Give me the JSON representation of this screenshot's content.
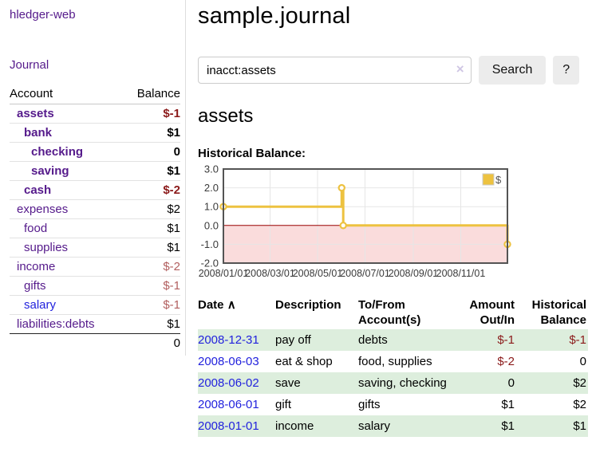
{
  "app": {
    "title": "hledger-web"
  },
  "sidebar": {
    "journal_label": "Journal",
    "headers": {
      "account": "Account",
      "balance": "Balance"
    },
    "rows": [
      {
        "account": "assets",
        "balance": "$-1",
        "depth": 1,
        "bold": true,
        "neg": "strong"
      },
      {
        "account": "bank",
        "balance": "$1",
        "depth": 2,
        "bold": true,
        "neg": null
      },
      {
        "account": "checking",
        "balance": "0",
        "depth": 3,
        "bold": true,
        "neg": null
      },
      {
        "account": "saving",
        "balance": "$1",
        "depth": 3,
        "bold": true,
        "neg": null
      },
      {
        "account": "cash",
        "balance": "$-2",
        "depth": 2,
        "bold": true,
        "neg": "strong"
      },
      {
        "account": "expenses",
        "balance": "$2",
        "depth": 1,
        "bold": false,
        "neg": null
      },
      {
        "account": "food",
        "balance": "$1",
        "depth": 2,
        "bold": false,
        "neg": null
      },
      {
        "account": "supplies",
        "balance": "$1",
        "depth": 2,
        "bold": false,
        "neg": null
      },
      {
        "account": "income",
        "balance": "$-2",
        "depth": 1,
        "bold": false,
        "neg": "soft"
      },
      {
        "account": "gifts",
        "balance": "$-1",
        "depth": 2,
        "bold": false,
        "neg": "soft"
      },
      {
        "account": "salary",
        "balance": "$-1",
        "depth": 2,
        "bold": false,
        "neg": "soft",
        "link": "unvisited"
      },
      {
        "account": "liabilities:debts",
        "balance": "$1",
        "depth": 1,
        "bold": false,
        "neg": null
      }
    ],
    "total": "0"
  },
  "main": {
    "title": "sample.journal"
  },
  "search": {
    "value": "inacct:assets",
    "clear_icon": "×",
    "button_label": "Search",
    "help_label": "?"
  },
  "account": {
    "heading": "assets",
    "chart_title": "Historical Balance:"
  },
  "chart_data": {
    "type": "line",
    "title": "Historical Balance:",
    "series": [
      {
        "name": "$",
        "color": "#edc240",
        "step": true,
        "points": [
          {
            "date": "2008-01-01",
            "value": 1
          },
          {
            "date": "2008-06-01",
            "value": 2
          },
          {
            "date": "2008-06-03",
            "value": 0
          },
          {
            "date": "2008-12-31",
            "value": -1
          }
        ]
      }
    ],
    "x_range": [
      "2008-01-01",
      "2008-12-31"
    ],
    "x_ticks": [
      "2008/01/01",
      "2008/03/01",
      "2008/05/01",
      "2008/07/01",
      "2008/09/01",
      "2008/11/01"
    ],
    "y_ticks": [
      3.0,
      2.0,
      1.0,
      0.0,
      -1.0,
      -2.0
    ],
    "ylim": [
      -2,
      3
    ],
    "grid": true,
    "legend": {
      "label": "$",
      "position": "top-right"
    },
    "colors": {
      "grid_line": "#e6e6e6",
      "zero_line": "#990000",
      "negative_region": "#fadcdc",
      "border": "#545454",
      "tick_text": "#3a3a3a"
    }
  },
  "register": {
    "headers": {
      "date": "Date",
      "sort_icon": "∧",
      "description": "Description",
      "accounts_line1": "To/From",
      "accounts_line2": "Account(s)",
      "amount_line1": "Amount",
      "amount_line2": "Out/In",
      "balance_line1": "Historical",
      "balance_line2": "Balance"
    },
    "rows": [
      {
        "date": "2008-12-31",
        "description": "pay off",
        "accounts": "debts",
        "amount": "$-1",
        "balance": "$-1"
      },
      {
        "date": "2008-06-03",
        "description": "eat & shop",
        "accounts": "food, supplies",
        "amount": "$-2",
        "balance": "0"
      },
      {
        "date": "2008-06-02",
        "description": "save",
        "accounts": "saving, checking",
        "amount": "0",
        "balance": "$2"
      },
      {
        "date": "2008-06-01",
        "description": "gift",
        "accounts": "gifts",
        "amount": "$1",
        "balance": "$2"
      },
      {
        "date": "2008-01-01",
        "description": "income",
        "accounts": "salary",
        "amount": "$1",
        "balance": "$1"
      }
    ]
  }
}
